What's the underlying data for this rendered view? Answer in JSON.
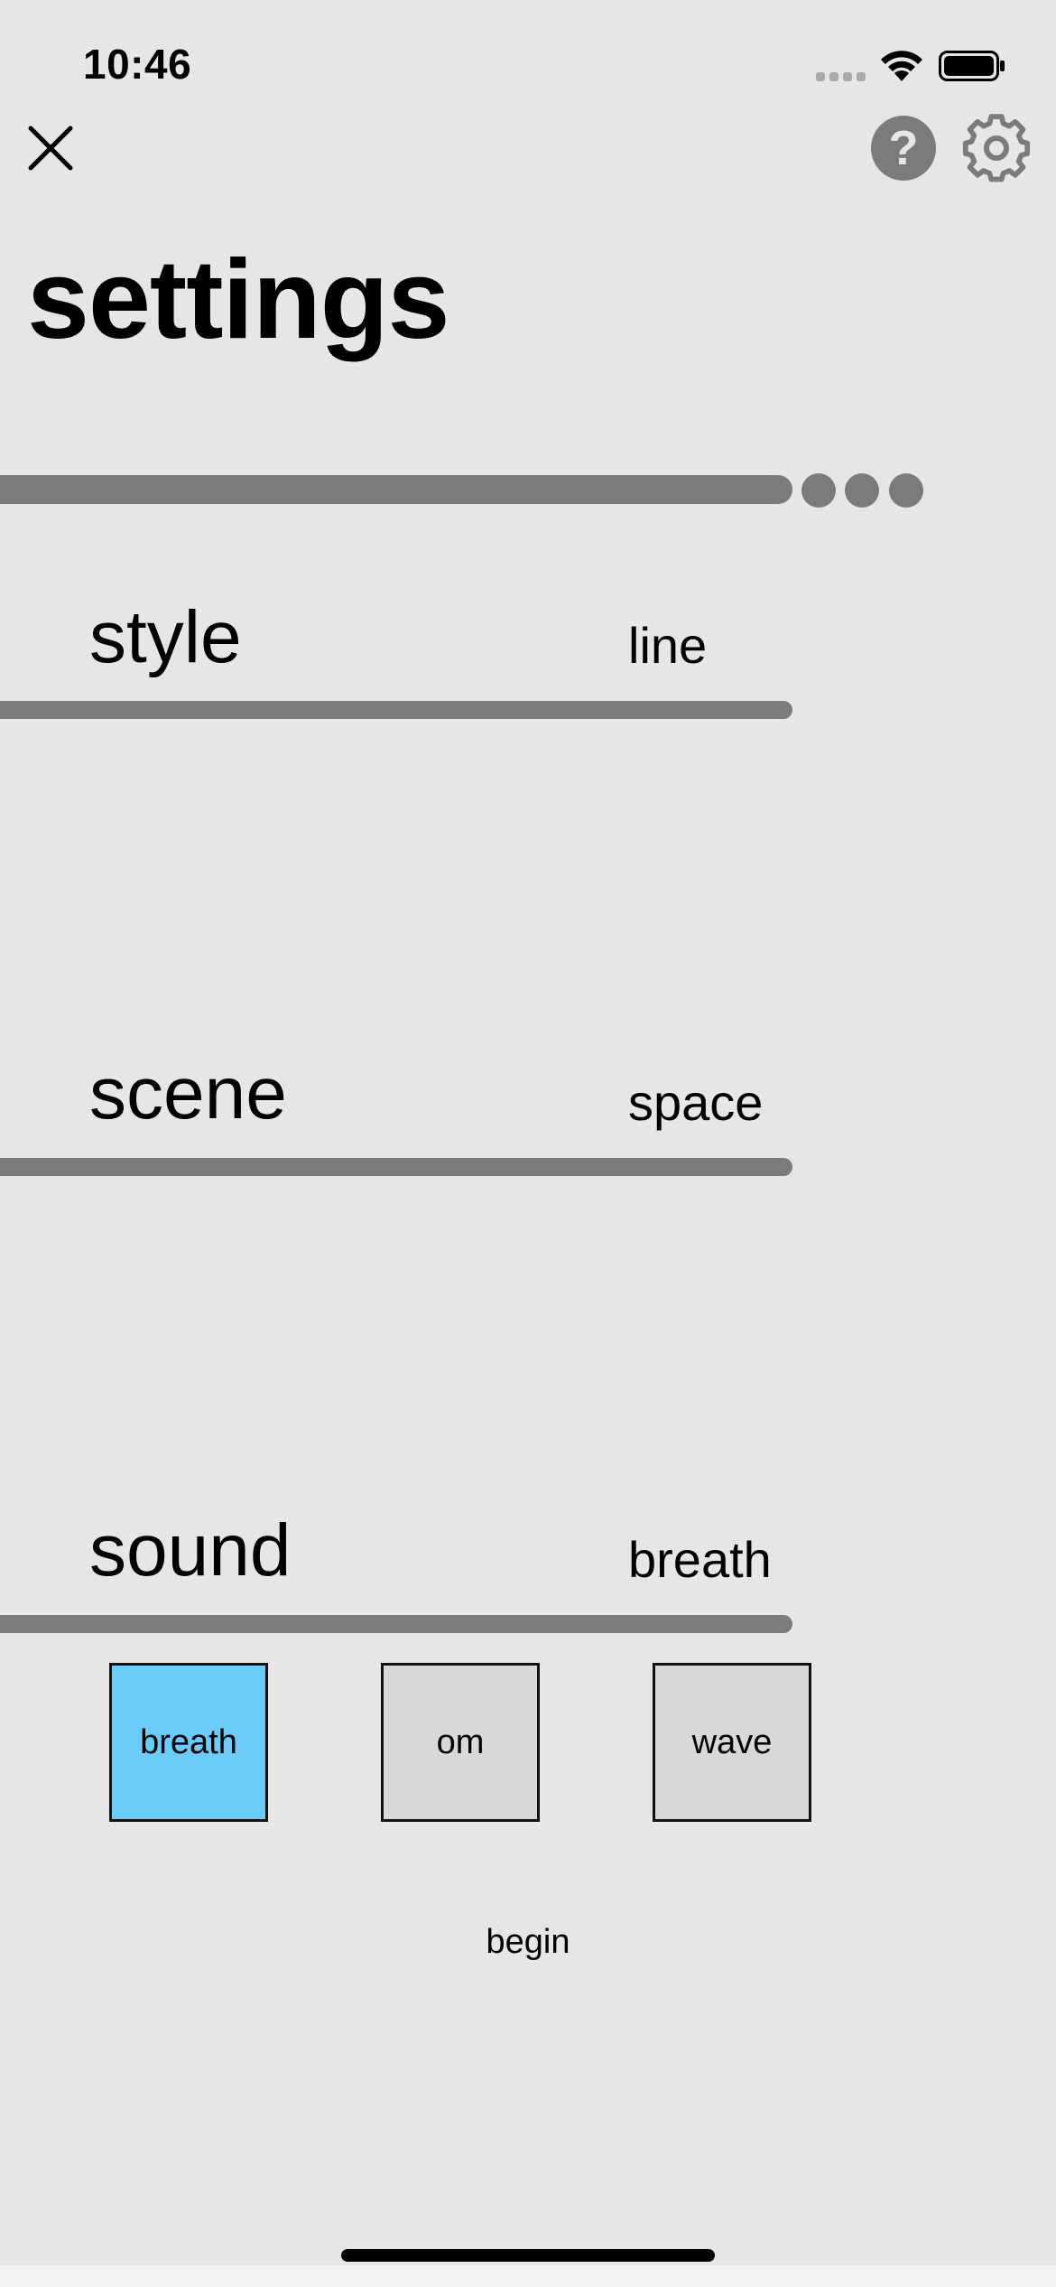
{
  "status_bar": {
    "time": "10:46"
  },
  "header": {
    "close_icon": "close-icon",
    "help_label": "?",
    "gear_icon": "gear-icon"
  },
  "title": "settings",
  "progress": {
    "dots": 3
  },
  "rows": [
    {
      "label": "style",
      "value": "line"
    },
    {
      "label": "scene",
      "value": "space"
    },
    {
      "label": "sound",
      "value": "breath"
    }
  ],
  "sound_options": [
    {
      "label": "breath",
      "selected": true
    },
    {
      "label": "om",
      "selected": false
    },
    {
      "label": "wave",
      "selected": false
    }
  ],
  "begin_label": "begin",
  "colors": {
    "background": "#e6e6e6",
    "bar": "#7b7b7b",
    "selected_option": "#6bccfa",
    "option": "#d8d8d8"
  }
}
